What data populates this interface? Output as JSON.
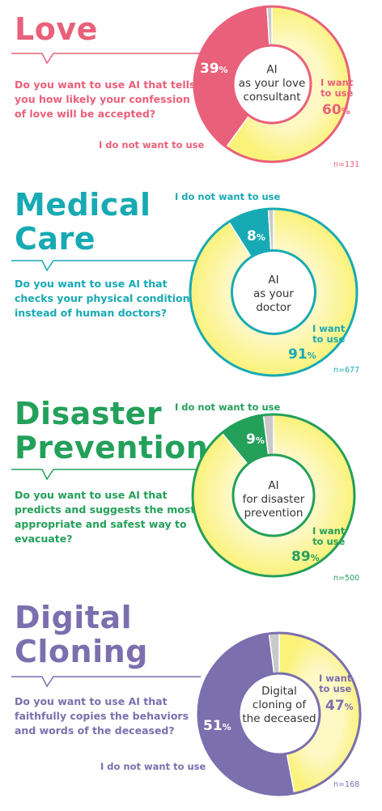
{
  "colors": {
    "love": "#e9607a",
    "medical": "#18aab4",
    "disaster": "#23a05a",
    "cloning": "#7b6fae",
    "yes_fill": "#fbf27a",
    "yes_fill_light": "#fdf8c4",
    "yes_edge": "#e0d84a",
    "gray": "#c9c9c9"
  },
  "sections": [
    {
      "key": "love",
      "title_lines": [
        "Love"
      ],
      "question": "Do you want to use AI that tells you how likely your confession of love will be accepted?",
      "center_label": [
        "AI",
        "as your love",
        "consultant"
      ],
      "want_label": [
        "I want",
        "to use"
      ],
      "not_want_label": "I do not want to use",
      "n": "n=131"
    },
    {
      "key": "medical",
      "title_lines": [
        "Medical",
        "Care"
      ],
      "question": "Do you want to use AI that checks your physical condition instead of human doctors?",
      "center_label": [
        "AI",
        "as your",
        "doctor"
      ],
      "want_label": [
        "I want",
        "to use"
      ],
      "not_want_label": "I do not want to use",
      "n": "n=677"
    },
    {
      "key": "disaster",
      "title_lines": [
        "Disaster",
        "Prevention"
      ],
      "question": "Do you want to use AI that predicts and suggests the most appropriate and safest way to evacuate?",
      "center_label": [
        "AI",
        "for disaster",
        "prevention"
      ],
      "want_label": [
        "I want",
        "to use"
      ],
      "not_want_label": "I do not want to use",
      "n": "n=500"
    },
    {
      "key": "cloning",
      "title_lines": [
        "Digital",
        "Cloning"
      ],
      "question": "Do you want to use AI that faithfully copies the behaviors and words of the deceased?",
      "center_label": [
        "Digital",
        "cloning of",
        "the deceased"
      ],
      "want_label": [
        "I want",
        "to use"
      ],
      "not_want_label": "I do not want to use",
      "n": "n=168"
    }
  ],
  "chart_data": [
    {
      "type": "pie",
      "categories": [
        "I want to use",
        "I do not want to use"
      ],
      "values": [
        60,
        39
      ],
      "unit": "%"
    },
    {
      "type": "pie",
      "categories": [
        "I want to use",
        "I do not want to use"
      ],
      "values": [
        91,
        8
      ],
      "unit": "%"
    },
    {
      "type": "pie",
      "categories": [
        "I want to use",
        "I do not want to use"
      ],
      "values": [
        89,
        9
      ],
      "unit": "%"
    },
    {
      "type": "pie",
      "categories": [
        "I want to use",
        "I do not want to use"
      ],
      "values": [
        47,
        51
      ],
      "unit": "%"
    }
  ]
}
